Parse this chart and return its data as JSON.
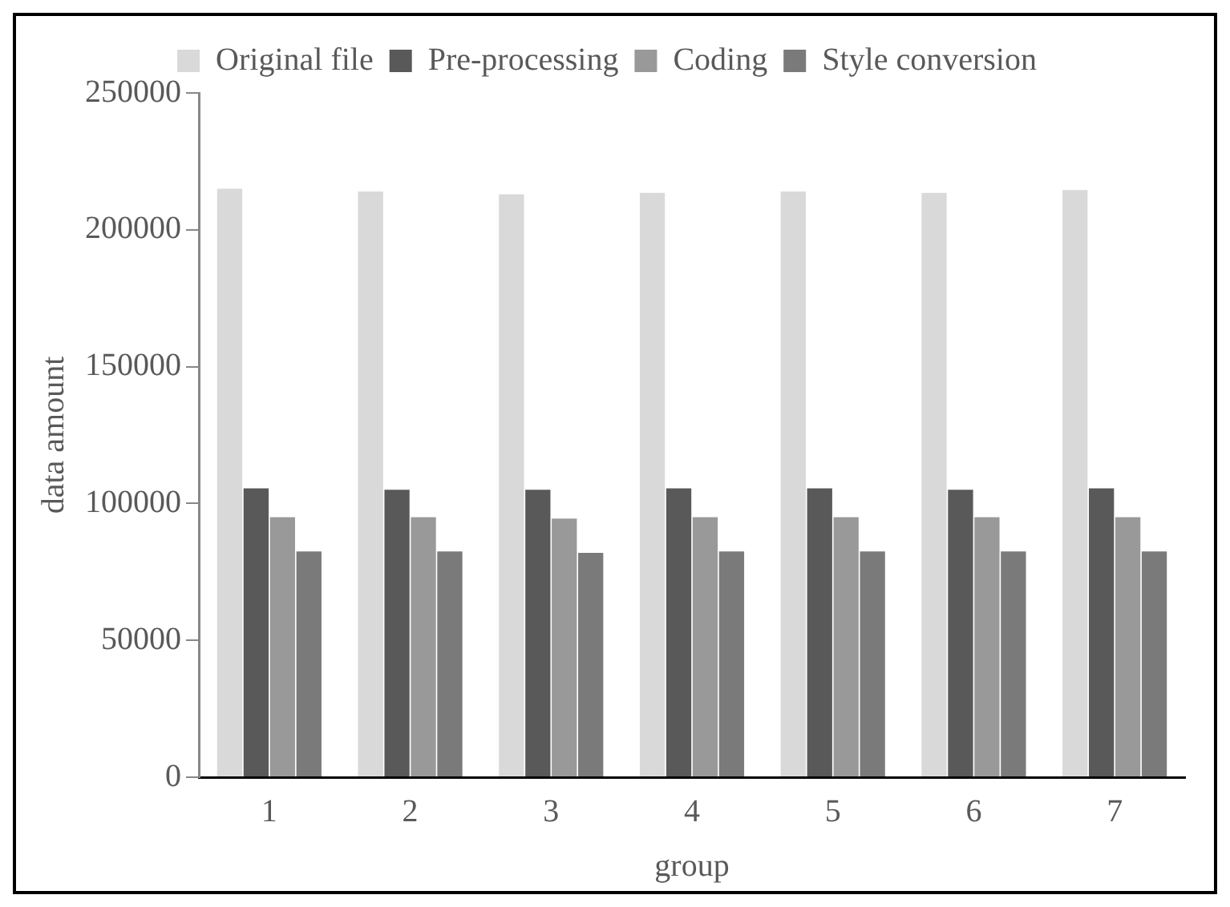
{
  "chart_data": {
    "type": "bar",
    "xlabel": "group",
    "ylabel": "data amount",
    "categories": [
      "1",
      "2",
      "3",
      "4",
      "5",
      "6",
      "7"
    ],
    "series": [
      {
        "name": "Original file",
        "color": "#d9d9d9",
        "values": [
          215000,
          214000,
          213000,
          213500,
          214000,
          213500,
          214500
        ]
      },
      {
        "name": "Pre-processing",
        "color": "#595959",
        "values": [
          105500,
          105000,
          105000,
          105500,
          105500,
          105000,
          105500
        ]
      },
      {
        "name": "Coding",
        "color": "#999999",
        "values": [
          95000,
          95000,
          94500,
          95000,
          95000,
          95000,
          95000
        ]
      },
      {
        "name": "Style conversion",
        "color": "#7a7a7a",
        "values": [
          82500,
          82500,
          82000,
          82500,
          82500,
          82500,
          82500
        ]
      }
    ],
    "ylim": [
      0,
      250000
    ],
    "yticks": [
      0,
      50000,
      100000,
      150000,
      200000,
      250000
    ],
    "grid": false,
    "legend": "top"
  }
}
